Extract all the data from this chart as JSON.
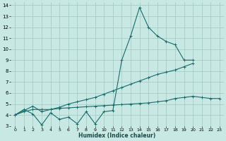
{
  "xlabel": "Humidex (Indice chaleur)",
  "bg_color": "#c8e8e4",
  "grid_color": "#a0c8c4",
  "line_color": "#1a6b6b",
  "xlim": [
    -0.5,
    23.5
  ],
  "ylim": [
    3,
    14.3
  ],
  "yticks": [
    3,
    4,
    5,
    6,
    7,
    8,
    9,
    10,
    11,
    12,
    13,
    14
  ],
  "xticks": [
    0,
    1,
    2,
    3,
    4,
    5,
    6,
    7,
    8,
    9,
    10,
    11,
    12,
    13,
    14,
    15,
    16,
    17,
    18,
    19,
    20,
    21,
    22,
    23
  ],
  "line1_x": [
    0,
    1,
    2,
    3,
    4,
    5,
    6,
    7,
    8,
    9,
    10,
    11,
    12,
    13,
    14,
    15,
    16,
    17,
    18,
    19,
    20
  ],
  "line1_y": [
    4.0,
    4.5,
    4.1,
    3.1,
    4.2,
    3.6,
    3.8,
    3.2,
    4.3,
    3.2,
    4.3,
    4.4,
    9.0,
    11.2,
    13.8,
    12.0,
    11.2,
    10.7,
    10.4,
    9.0,
    9.0
  ],
  "line2_x": [
    0,
    2,
    3,
    4,
    5,
    6,
    7,
    8,
    9,
    10,
    11,
    12,
    13,
    14,
    15,
    16,
    17,
    18,
    19,
    20,
    21,
    22,
    23
  ],
  "line2_y": [
    4.0,
    4.8,
    4.3,
    4.5,
    4.7,
    5.0,
    5.2,
    5.4,
    5.6,
    5.9,
    6.2,
    6.5,
    6.8,
    7.1,
    7.4,
    7.7,
    7.9,
    8.1,
    8.4,
    8.7,
    null,
    null,
    null
  ],
  "line2_y_clean": [
    4.0,
    4.8,
    4.3,
    4.5,
    4.7,
    5.0,
    5.2,
    5.4,
    5.6,
    5.9,
    6.2,
    6.5,
    6.8,
    7.1,
    7.4,
    7.7,
    7.9,
    8.1,
    8.4,
    8.7
  ],
  "line2_x_clean": [
    0,
    2,
    3,
    4,
    5,
    6,
    7,
    8,
    9,
    10,
    11,
    12,
    13,
    14,
    15,
    16,
    17,
    18,
    19,
    20
  ],
  "line3_x": [
    0,
    1,
    2,
    3,
    4,
    5,
    6,
    7,
    8,
    9,
    10,
    11,
    12,
    13,
    14,
    15,
    16,
    17,
    18,
    19,
    20,
    21,
    22,
    23
  ],
  "line3_y": [
    4.0,
    4.3,
    4.5,
    4.5,
    4.5,
    4.6,
    4.65,
    4.7,
    4.75,
    4.8,
    4.85,
    4.9,
    4.95,
    5.0,
    5.05,
    5.1,
    5.2,
    5.3,
    5.5,
    5.6,
    5.7,
    5.6,
    5.5,
    5.5
  ]
}
